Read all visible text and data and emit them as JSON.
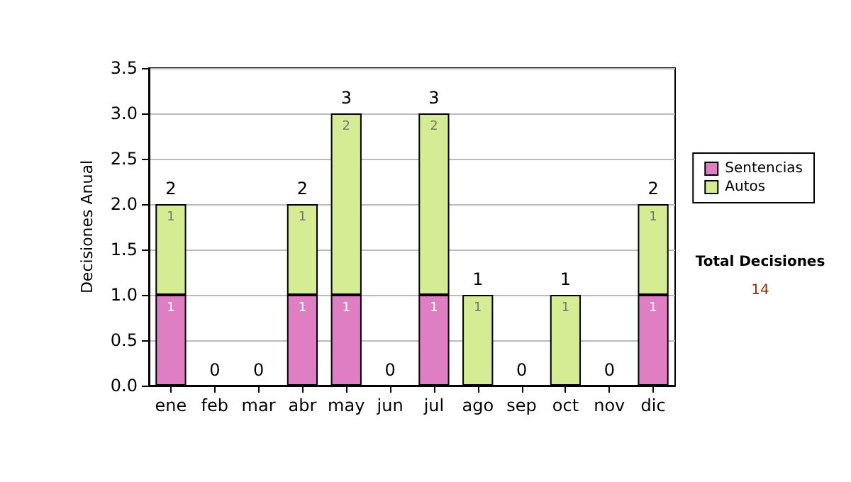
{
  "chart_data": {
    "type": "bar",
    "stacked": true,
    "ylabel": "Decisiones Anual",
    "categories": [
      "ene",
      "feb",
      "mar",
      "abr",
      "may",
      "jun",
      "jul",
      "ago",
      "sep",
      "oct",
      "nov",
      "dic"
    ],
    "series": [
      {
        "name": "Sentencias",
        "color": "#e07ec4",
        "values": [
          1,
          0,
          0,
          1,
          1,
          0,
          1,
          0,
          0,
          0,
          0,
          1
        ],
        "value_labels": [
          "1",
          null,
          null,
          "1",
          "1",
          null,
          "1",
          null,
          null,
          null,
          null,
          "1"
        ]
      },
      {
        "name": "Autos",
        "color": "#d6ec94",
        "values": [
          1,
          0,
          0,
          1,
          2,
          0,
          2,
          1,
          0,
          1,
          0,
          1
        ],
        "value_labels": [
          "1",
          null,
          null,
          "1",
          "2",
          null,
          "2",
          "1",
          null,
          "1",
          null,
          "1"
        ]
      }
    ],
    "totals": [
      "2",
      "0",
      "0",
      "2",
      "3",
      "0",
      "3",
      "1",
      "0",
      "1",
      "0",
      "2"
    ],
    "ylim": [
      0,
      3.5
    ],
    "yticks": [
      {
        "value": 0,
        "label": "0.0"
      },
      0.5,
      {
        "value": 1,
        "label": "1.0"
      },
      1.5,
      {
        "value": 2,
        "label": "2.0"
      },
      2.5,
      {
        "value": 3,
        "label": "3.0"
      },
      3.5
    ],
    "grid": "y",
    "legend": "right",
    "annotations": [
      "Total Decisiones",
      "14"
    ]
  }
}
